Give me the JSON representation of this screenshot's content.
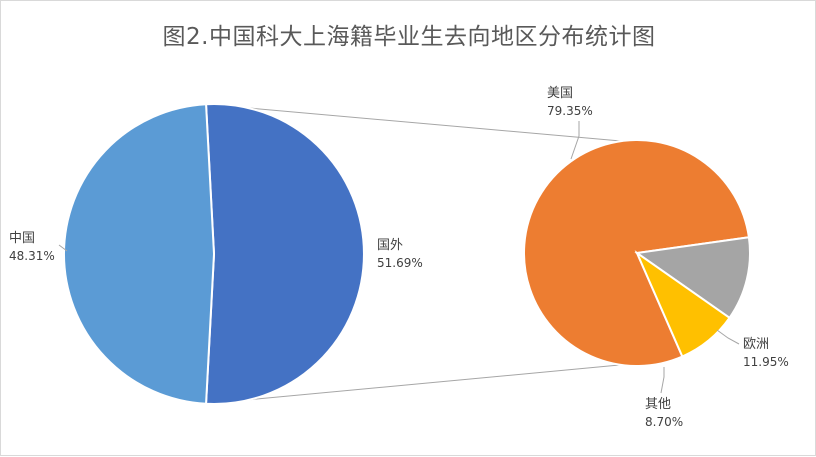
{
  "chart_data": {
    "type": "pie",
    "subtype": "pie-of-pie",
    "title": "图2.中国科大上海籍毕业生去向地区分布统计图",
    "main_pie": {
      "slices": [
        {
          "label": "国外",
          "value": 51.69,
          "value_label": "51.69%",
          "color": "#4472C4"
        },
        {
          "label": "中国",
          "value": 48.31,
          "value_label": "48.31%",
          "color": "#5B9BD5"
        }
      ]
    },
    "secondary_pie": {
      "source_slice": "国外",
      "slices": [
        {
          "label": "美国",
          "value": 79.35,
          "value_label": "79.35%",
          "color": "#ED7D31"
        },
        {
          "label": "欧洲",
          "value": 11.95,
          "value_label": "11.95%",
          "color": "#A5A5A5"
        },
        {
          "label": "其他",
          "value": 8.7,
          "value_label": "8.70%",
          "color": "#FFC000"
        }
      ]
    },
    "legend": "none",
    "grid": false
  }
}
